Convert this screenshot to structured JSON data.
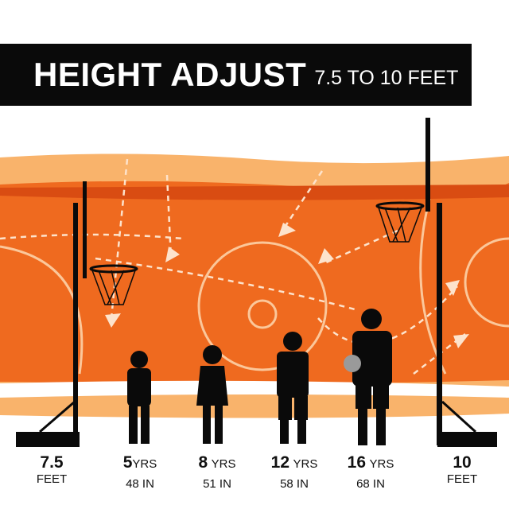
{
  "title": {
    "main": "HEIGHT ADJUST",
    "sub": "7.5 TO 10 FEET"
  },
  "colors": {
    "orange": "#ef6a1f",
    "light_orange": "#f9b36b",
    "dark_orange": "#d94c12",
    "black": "#0a0a0a"
  },
  "labels": [
    {
      "big": "7.5",
      "unit": "",
      "line2": "FEET"
    },
    {
      "big": "5",
      "unit": "YRS",
      "line2": "48 IN"
    },
    {
      "big": "8",
      "unit": "YRS",
      "line2": "51 IN"
    },
    {
      "big": "12",
      "unit": "YRS",
      "line2": "58 IN"
    },
    {
      "big": "16",
      "unit": "YRS",
      "line2": "68 IN"
    },
    {
      "big": "10",
      "unit": "",
      "line2": "FEET"
    }
  ]
}
